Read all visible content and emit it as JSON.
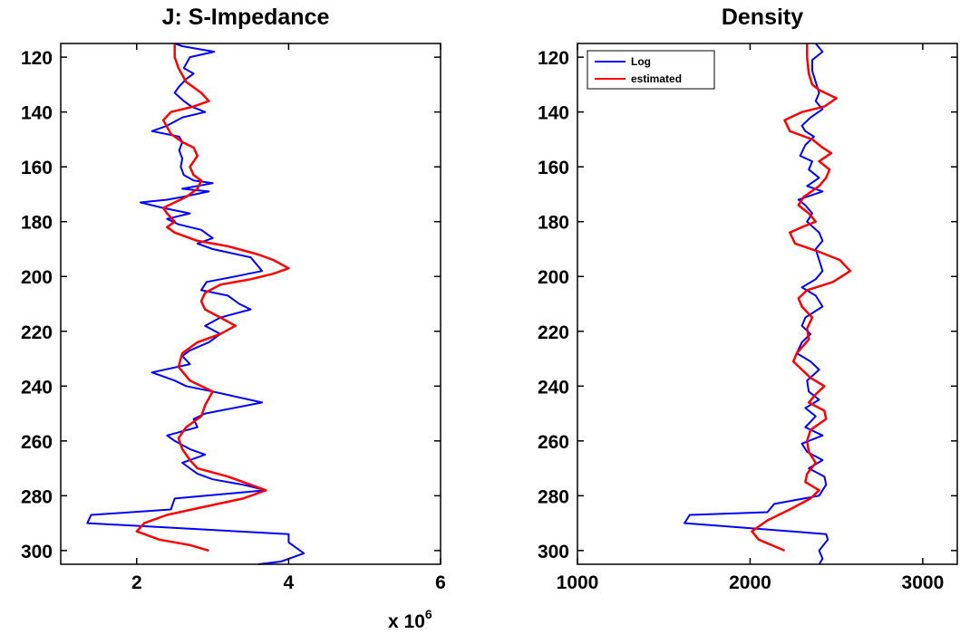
{
  "chart_data": [
    {
      "type": "line",
      "title": "J: S-Impedance",
      "x_multiplier": {
        "base": "x 10",
        "exponent": "6"
      },
      "xlim": [
        1000000,
        6000000
      ],
      "ylim": [
        305,
        115
      ],
      "y_reversed": true,
      "xticks": [
        2000000,
        4000000,
        6000000
      ],
      "xtick_labels": [
        "2",
        "4",
        "6"
      ],
      "yticks": [
        120,
        140,
        160,
        180,
        200,
        220,
        240,
        260,
        280,
        300
      ],
      "ytick_labels": [
        "120",
        "140",
        "160",
        "180",
        "200",
        "220",
        "240",
        "260",
        "280",
        "300"
      ],
      "grid": false,
      "series": [
        {
          "color": "#0000ff",
          "points": [
            [
              2500000,
              115
            ],
            [
              2600000,
              116
            ],
            [
              3020000,
              118
            ],
            [
              2700000,
              120
            ],
            [
              2620000,
              124
            ],
            [
              2750000,
              126
            ],
            [
              2650000,
              128
            ],
            [
              2550000,
              131
            ],
            [
              2500000,
              133
            ],
            [
              2620000,
              136
            ],
            [
              2720000,
              138
            ],
            [
              2900000,
              140
            ],
            [
              2600000,
              142
            ],
            [
              2400000,
              145
            ],
            [
              2200000,
              147
            ],
            [
              2560000,
              149
            ],
            [
              2600000,
              151
            ],
            [
              2560000,
              154
            ],
            [
              2600000,
              157
            ],
            [
              2580000,
              160
            ],
            [
              2620000,
              163
            ],
            [
              2750000,
              165
            ],
            [
              3000000,
              166
            ],
            [
              2600000,
              168
            ],
            [
              2950000,
              169
            ],
            [
              2600000,
              171
            ],
            [
              2400000,
              172
            ],
            [
              2050000,
              173
            ],
            [
              2350000,
              175
            ],
            [
              2700000,
              177
            ],
            [
              2400000,
              179
            ],
            [
              2550000,
              181
            ],
            [
              2850000,
              183
            ],
            [
              3000000,
              186
            ],
            [
              2800000,
              188
            ],
            [
              3000000,
              190
            ],
            [
              3500000,
              193
            ],
            [
              3650000,
              198
            ],
            [
              3300000,
              200
            ],
            [
              2920000,
              202
            ],
            [
              2850000,
              205
            ],
            [
              3200000,
              207
            ],
            [
              3350000,
              210
            ],
            [
              3500000,
              212
            ],
            [
              3100000,
              215
            ],
            [
              2900000,
              218
            ],
            [
              3100000,
              221
            ],
            [
              2950000,
              224
            ],
            [
              2700000,
              227
            ],
            [
              2600000,
              229
            ],
            [
              2700000,
              232
            ],
            [
              2200000,
              235
            ],
            [
              2500000,
              238
            ],
            [
              2650000,
              240
            ],
            [
              3000000,
              242
            ],
            [
              3650000,
              246
            ],
            [
              2900000,
              250
            ],
            [
              2750000,
              252
            ],
            [
              2800000,
              255
            ],
            [
              2400000,
              258
            ],
            [
              2500000,
              260
            ],
            [
              2700000,
              263
            ],
            [
              2900000,
              265
            ],
            [
              2600000,
              268
            ],
            [
              2800000,
              272
            ],
            [
              3000000,
              274
            ],
            [
              3400000,
              276
            ],
            [
              3700000,
              278
            ],
            [
              2500000,
              281
            ],
            [
              2450000,
              285
            ],
            [
              1400000,
              287
            ],
            [
              1350000,
              290
            ],
            [
              4000000,
              294
            ],
            [
              4000000,
              297
            ],
            [
              4200000,
              301
            ],
            [
              3900000,
              304
            ],
            [
              3600000,
              305
            ]
          ]
        },
        {
          "color": "#ff0000",
          "points": [
            [
              2500000,
              115
            ],
            [
              2500000,
              120
            ],
            [
              2550000,
              124
            ],
            [
              2650000,
              129
            ],
            [
              2850000,
              133
            ],
            [
              2950000,
              136
            ],
            [
              2750000,
              138
            ],
            [
              2450000,
              140
            ],
            [
              2350000,
              143
            ],
            [
              2450000,
              148
            ],
            [
              2600000,
              151
            ],
            [
              2750000,
              153
            ],
            [
              2800000,
              156
            ],
            [
              2700000,
              160
            ],
            [
              2750000,
              163
            ],
            [
              2850000,
              165
            ],
            [
              2800000,
              168
            ],
            [
              2650000,
              171
            ],
            [
              2500000,
              173
            ],
            [
              2350000,
              175
            ],
            [
              2400000,
              177
            ],
            [
              2500000,
              180
            ],
            [
              2400000,
              182
            ],
            [
              2500000,
              184
            ],
            [
              2800000,
              187
            ],
            [
              3200000,
              189
            ],
            [
              3600000,
              192
            ],
            [
              3800000,
              194
            ],
            [
              4000000,
              197
            ],
            [
              3800000,
              199
            ],
            [
              3500000,
              201
            ],
            [
              3100000,
              203
            ],
            [
              2900000,
              206
            ],
            [
              2850000,
              209
            ],
            [
              2900000,
              212
            ],
            [
              3100000,
              215
            ],
            [
              3300000,
              218
            ],
            [
              3100000,
              221
            ],
            [
              2800000,
              224
            ],
            [
              2600000,
              228
            ],
            [
              2550000,
              233
            ],
            [
              2700000,
              238
            ],
            [
              3000000,
              242
            ],
            [
              2900000,
              247
            ],
            [
              2850000,
              251
            ],
            [
              2650000,
              255
            ],
            [
              2550000,
              259
            ],
            [
              2600000,
              263
            ],
            [
              2700000,
              267
            ],
            [
              2800000,
              270
            ],
            [
              3200000,
              273
            ],
            [
              3500000,
              276
            ],
            [
              3700000,
              278
            ],
            [
              3400000,
              281
            ],
            [
              2900000,
              284
            ],
            [
              2400000,
              287
            ],
            [
              2100000,
              290
            ],
            [
              2000000,
              293
            ],
            [
              2300000,
              296
            ],
            [
              2700000,
              298
            ],
            [
              2950000,
              300
            ]
          ]
        }
      ]
    },
    {
      "type": "line",
      "title": "Density",
      "xlim": [
        1000,
        3200
      ],
      "ylim": [
        305,
        115
      ],
      "y_reversed": true,
      "xticks": [
        1000,
        2000,
        3000
      ],
      "xtick_labels": [
        "1000",
        "2000",
        "3000"
      ],
      "yticks": [
        120,
        140,
        160,
        180,
        200,
        220,
        240,
        260,
        280,
        300
      ],
      "ytick_labels": [
        "120",
        "140",
        "160",
        "180",
        "200",
        "220",
        "240",
        "260",
        "280",
        "300"
      ],
      "grid": false,
      "legend": {
        "position": "top-left",
        "entries": [
          {
            "label": "Log",
            "color": "#0000ff"
          },
          {
            "label": "estimated",
            "color": "#ff0000"
          }
        ]
      },
      "series": [
        {
          "name": "Log",
          "color": "#0000ff",
          "points": [
            [
              2380,
              115
            ],
            [
              2420,
              118
            ],
            [
              2360,
              121
            ],
            [
              2360,
              125
            ],
            [
              2380,
              129
            ],
            [
              2400,
              133
            ],
            [
              2380,
              136
            ],
            [
              2420,
              139
            ],
            [
              2350,
              142
            ],
            [
              2300,
              145
            ],
            [
              2320,
              147
            ],
            [
              2370,
              149
            ],
            [
              2320,
              152
            ],
            [
              2290,
              156
            ],
            [
              2360,
              158
            ],
            [
              2340,
              161
            ],
            [
              2400,
              164
            ],
            [
              2330,
              167
            ],
            [
              2420,
              169
            ],
            [
              2280,
              172
            ],
            [
              2320,
              174
            ],
            [
              2360,
              177
            ],
            [
              2330,
              180
            ],
            [
              2400,
              184
            ],
            [
              2420,
              187
            ],
            [
              2380,
              190
            ],
            [
              2400,
              194
            ],
            [
              2420,
              198
            ],
            [
              2380,
              201
            ],
            [
              2300,
              204
            ],
            [
              2380,
              207
            ],
            [
              2420,
              211
            ],
            [
              2320,
              215
            ],
            [
              2300,
              218
            ],
            [
              2350,
              221
            ],
            [
              2300,
              224
            ],
            [
              2270,
              228
            ],
            [
              2350,
              231
            ],
            [
              2400,
              234
            ],
            [
              2330,
              238
            ],
            [
              2340,
              242
            ],
            [
              2400,
              245
            ],
            [
              2320,
              248
            ],
            [
              2380,
              251
            ],
            [
              2320,
              255
            ],
            [
              2420,
              258
            ],
            [
              2300,
              261
            ],
            [
              2330,
              264
            ],
            [
              2420,
              267
            ],
            [
              2340,
              270
            ],
            [
              2430,
              273
            ],
            [
              2440,
              276
            ],
            [
              2400,
              280
            ],
            [
              2140,
              283
            ],
            [
              2100,
              286
            ],
            [
              1650,
              287
            ],
            [
              1620,
              290
            ],
            [
              2440,
              294
            ],
            [
              2450,
              296
            ],
            [
              2400,
              300
            ],
            [
              2420,
              303
            ],
            [
              2400,
              305
            ]
          ]
        },
        {
          "name": "estimated",
          "color": "#ff0000",
          "points": [
            [
              2330,
              115
            ],
            [
              2330,
              120
            ],
            [
              2340,
              126
            ],
            [
              2360,
              130
            ],
            [
              2400,
              132
            ],
            [
              2500,
              135
            ],
            [
              2430,
              138
            ],
            [
              2300,
              140
            ],
            [
              2200,
              143
            ],
            [
              2230,
              147
            ],
            [
              2360,
              150
            ],
            [
              2420,
              153
            ],
            [
              2470,
              155
            ],
            [
              2400,
              158
            ],
            [
              2460,
              161
            ],
            [
              2440,
              164
            ],
            [
              2400,
              167
            ],
            [
              2310,
              171
            ],
            [
              2280,
              174
            ],
            [
              2340,
              177
            ],
            [
              2380,
              180
            ],
            [
              2300,
              182
            ],
            [
              2230,
              184
            ],
            [
              2260,
              188
            ],
            [
              2400,
              191
            ],
            [
              2520,
              194
            ],
            [
              2580,
              198
            ],
            [
              2480,
              202
            ],
            [
              2330,
              205
            ],
            [
              2280,
              208
            ],
            [
              2300,
              211
            ],
            [
              2360,
              215
            ],
            [
              2330,
              219
            ],
            [
              2340,
              223
            ],
            [
              2270,
              228
            ],
            [
              2250,
              231
            ],
            [
              2300,
              234
            ],
            [
              2350,
              237
            ],
            [
              2430,
              240
            ],
            [
              2380,
              243
            ],
            [
              2340,
              246
            ],
            [
              2430,
              249
            ],
            [
              2440,
              252
            ],
            [
              2350,
              256
            ],
            [
              2330,
              260
            ],
            [
              2340,
              264
            ],
            [
              2380,
              268
            ],
            [
              2330,
              272
            ],
            [
              2320,
              275
            ],
            [
              2400,
              278
            ],
            [
              2350,
              281
            ],
            [
              2230,
              285
            ],
            [
              2100,
              289
            ],
            [
              2010,
              293
            ],
            [
              2050,
              296
            ],
            [
              2200,
              300
            ]
          ]
        }
      ]
    }
  ]
}
